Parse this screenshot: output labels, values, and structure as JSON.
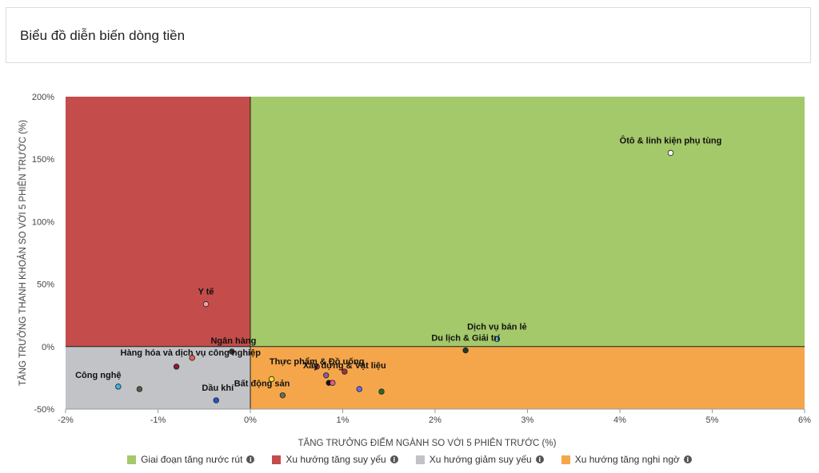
{
  "header": {
    "title": "Biểu đồ diễn biến dòng tiền"
  },
  "legend": {
    "items": [
      {
        "label": "Giai đoạn tăng nước rút",
        "color": "#a4c96a"
      },
      {
        "label": "Xu hướng tăng suy yếu",
        "color": "#c44c4a"
      },
      {
        "label": "Xu hướng giảm suy yếu",
        "color": "#c2c3c7"
      },
      {
        "label": "Xu hướng tăng nghi ngờ",
        "color": "#f5a64a"
      }
    ],
    "info_icon": "info-icon"
  },
  "chart_data": {
    "type": "scatter",
    "xlabel": "TĂNG TRƯỞNG ĐIỂM NGÀNH SO VỚI 5 PHIÊN TRƯỚC (%)",
    "ylabel": "TĂNG TRƯỞNG THANH KHOẢN SO VỚI 5 PHIÊN TRƯỚC (%)",
    "xlim": [
      -2,
      6
    ],
    "ylim": [
      -50,
      200
    ],
    "x_ticks": [
      -2,
      -1,
      0,
      1,
      2,
      3,
      4,
      5,
      6
    ],
    "x_tick_labels": [
      "-2%",
      "-1%",
      "0%",
      "1%",
      "2%",
      "3%",
      "4%",
      "5%",
      "6%"
    ],
    "y_ticks": [
      -50,
      0,
      50,
      100,
      150,
      200
    ],
    "y_tick_labels": [
      "-50%",
      "0%",
      "50%",
      "100%",
      "150%",
      "200%"
    ],
    "quadrants": [
      {
        "name": "Giai đoạn tăng nước rút",
        "x": [
          0,
          6
        ],
        "y": [
          0,
          200
        ],
        "color": "#a4c96a"
      },
      {
        "name": "Xu hướng tăng suy yếu",
        "x": [
          -2,
          0
        ],
        "y": [
          0,
          200
        ],
        "color": "#c44c4a"
      },
      {
        "name": "Xu hướng giảm suy yếu",
        "x": [
          -2,
          0
        ],
        "y": [
          -50,
          0
        ],
        "color": "#c2c3c7"
      },
      {
        "name": "Xu hướng tăng nghi ngờ",
        "x": [
          0,
          6
        ],
        "y": [
          -50,
          0
        ],
        "color": "#f5a64a"
      }
    ],
    "points": [
      {
        "label": "Ôtô & linh kiện phụ tùng",
        "x": 4.55,
        "y": 155,
        "color": "#ffffff"
      },
      {
        "label": "Y tế",
        "x": -0.48,
        "y": 34,
        "color": "#f2a0a0"
      },
      {
        "label": "Dịch vụ bán lẻ",
        "x": 2.67,
        "y": 6,
        "color": "#5ab4d6"
      },
      {
        "label": "Du lịch & Giải trí",
        "x": 2.33,
        "y": -3,
        "color": "#1e3a26"
      },
      {
        "label": "Ngân hàng",
        "x": -0.2,
        "y": -4,
        "color": "#2f2f2f"
      },
      {
        "label": "Hàng hóa và dịch vụ công nghiệp",
        "x": -0.63,
        "y": -9,
        "color": "#e8604d"
      },
      {
        "label": "",
        "x": -0.8,
        "y": -16,
        "color": "#8a1c2c"
      },
      {
        "label": "Thực phẩm & Đồ uống",
        "x": 0.72,
        "y": -16,
        "color": "#8a3a3a"
      },
      {
        "label": "",
        "x": 0.82,
        "y": -23,
        "color": "#8b5a9a"
      },
      {
        "label": "Xây dựng & Vật liệu",
        "x": 1.02,
        "y": -20,
        "color": "#a0304a"
      },
      {
        "label": "Bất động sản",
        "x": 0.23,
        "y": -26,
        "color": "#f0e030"
      },
      {
        "label": "",
        "x": 0.85,
        "y": -29,
        "color": "#121212"
      },
      {
        "label": "",
        "x": 0.89,
        "y": -29,
        "color": "#e05a8a"
      },
      {
        "label": "",
        "x": 1.18,
        "y": -34,
        "color": "#6a6aff"
      },
      {
        "label": "",
        "x": 0.35,
        "y": -39,
        "color": "#6a6a5a"
      },
      {
        "label": "",
        "x": 1.42,
        "y": -36,
        "color": "#2a6a2a"
      },
      {
        "label": "Công nghệ",
        "x": -1.43,
        "y": -32,
        "color": "#3ab4e6"
      },
      {
        "label": "",
        "x": -1.2,
        "y": -34,
        "color": "#5a5a4a"
      },
      {
        "label": "Dầu khí",
        "x": -0.37,
        "y": -43,
        "color": "#1e56c8"
      }
    ]
  }
}
